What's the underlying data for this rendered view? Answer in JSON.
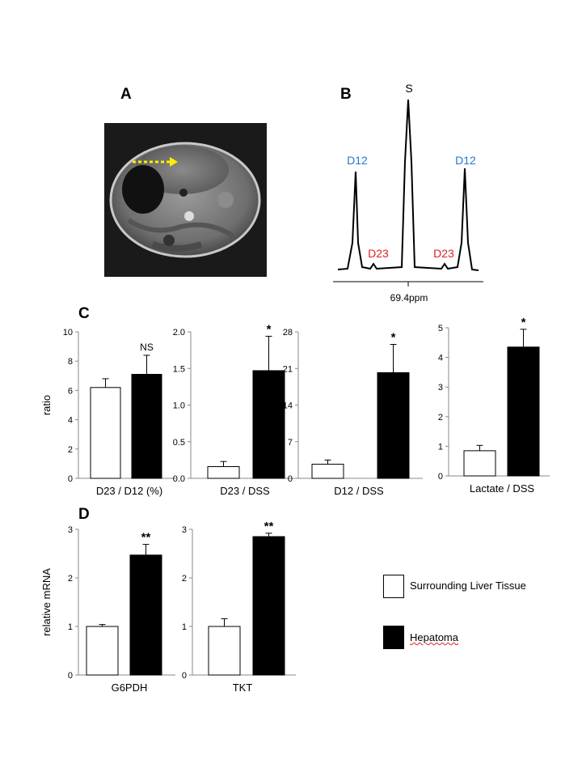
{
  "panels": {
    "a": "A",
    "b": "B",
    "c": "C",
    "d": "D"
  },
  "spectrum": {
    "peak_labels": {
      "s": "S",
      "d12_left": "D12",
      "d12_right": "D12",
      "d23_left": "D23",
      "d23_right": "D23"
    },
    "axis_label": "69.4ppm",
    "colors": {
      "d12": "#1f7ad1",
      "d23": "#e02020",
      "s": "#000000"
    }
  },
  "mri": {
    "arrow_color": "#ffee00"
  },
  "legend": {
    "items": [
      {
        "label": "Surrounding Liver Tissue",
        "fill": "#ffffff"
      },
      {
        "label": "Hepatoma",
        "fill": "#000000"
      }
    ]
  },
  "chart_data": [
    {
      "type": "bar",
      "panel": "C",
      "ylabel": "ratio",
      "xlabel": "D23 / D12 (%)",
      "categories": [
        "Surrounding Liver Tissue",
        "Hepatoma"
      ],
      "values": [
        6.2,
        7.1
      ],
      "errors": [
        0.6,
        1.3
      ],
      "ylim": [
        0,
        10
      ],
      "yticks": [
        0,
        2,
        4,
        6,
        8,
        10
      ],
      "ytick_labels": [
        "0",
        "2",
        "4",
        "6",
        "8",
        "10"
      ],
      "annotation": "NS"
    },
    {
      "type": "bar",
      "panel": "C",
      "ylabel": "",
      "xlabel": "D23 / DSS",
      "categories": [
        "Surrounding Liver Tissue",
        "Hepatoma"
      ],
      "values": [
        0.16,
        1.47
      ],
      "errors": [
        0.07,
        0.47
      ],
      "ylim": [
        0,
        2.0
      ],
      "yticks": [
        0,
        0.5,
        1.0,
        1.5,
        2.0
      ],
      "ytick_labels": [
        "0.0",
        "0.5",
        "1.0",
        "1.5",
        "2.0"
      ],
      "annotation": "*"
    },
    {
      "type": "bar",
      "panel": "C",
      "ylabel": "",
      "xlabel": "D12 / DSS",
      "categories": [
        "Surrounding Liver Tissue",
        "Hepatoma"
      ],
      "values": [
        2.7,
        20.2
      ],
      "errors": [
        0.8,
        5.4
      ],
      "ylim": [
        0,
        28
      ],
      "yticks": [
        0,
        7,
        14,
        21,
        28
      ],
      "ytick_labels": [
        "0",
        "7",
        "14",
        "21",
        "28"
      ],
      "annotation": "*"
    },
    {
      "type": "bar",
      "panel": "C",
      "ylabel": "",
      "xlabel": "Lactate / DSS",
      "categories": [
        "Surrounding Liver Tissue",
        "Hepatoma"
      ],
      "values": [
        0.85,
        4.35
      ],
      "errors": [
        0.18,
        0.6
      ],
      "ylim": [
        0,
        5
      ],
      "yticks": [
        0,
        1,
        2,
        3,
        4,
        5
      ],
      "ytick_labels": [
        "0",
        "1",
        "2",
        "3",
        "4",
        "5"
      ],
      "annotation": "*"
    },
    {
      "type": "bar",
      "panel": "D",
      "ylabel": "relative mRNA",
      "xlabel": "G6PDH",
      "categories": [
        "Surrounding Liver Tissue",
        "Hepatoma"
      ],
      "values": [
        1.0,
        2.47
      ],
      "errors": [
        0.04,
        0.22
      ],
      "ylim": [
        0,
        3
      ],
      "yticks": [
        0,
        1,
        2,
        3
      ],
      "ytick_labels": [
        "0",
        "1",
        "2",
        "3"
      ],
      "annotation": "**"
    },
    {
      "type": "bar",
      "panel": "D",
      "ylabel": "",
      "xlabel": "TKT",
      "categories": [
        "Surrounding Liver Tissue",
        "Hepatoma"
      ],
      "values": [
        1.0,
        2.85
      ],
      "errors": [
        0.16,
        0.07
      ],
      "ylim": [
        0,
        3
      ],
      "yticks": [
        0,
        1,
        2,
        3
      ],
      "ytick_labels": [
        "0",
        "1",
        "2",
        "3"
      ],
      "annotation": "**"
    }
  ]
}
